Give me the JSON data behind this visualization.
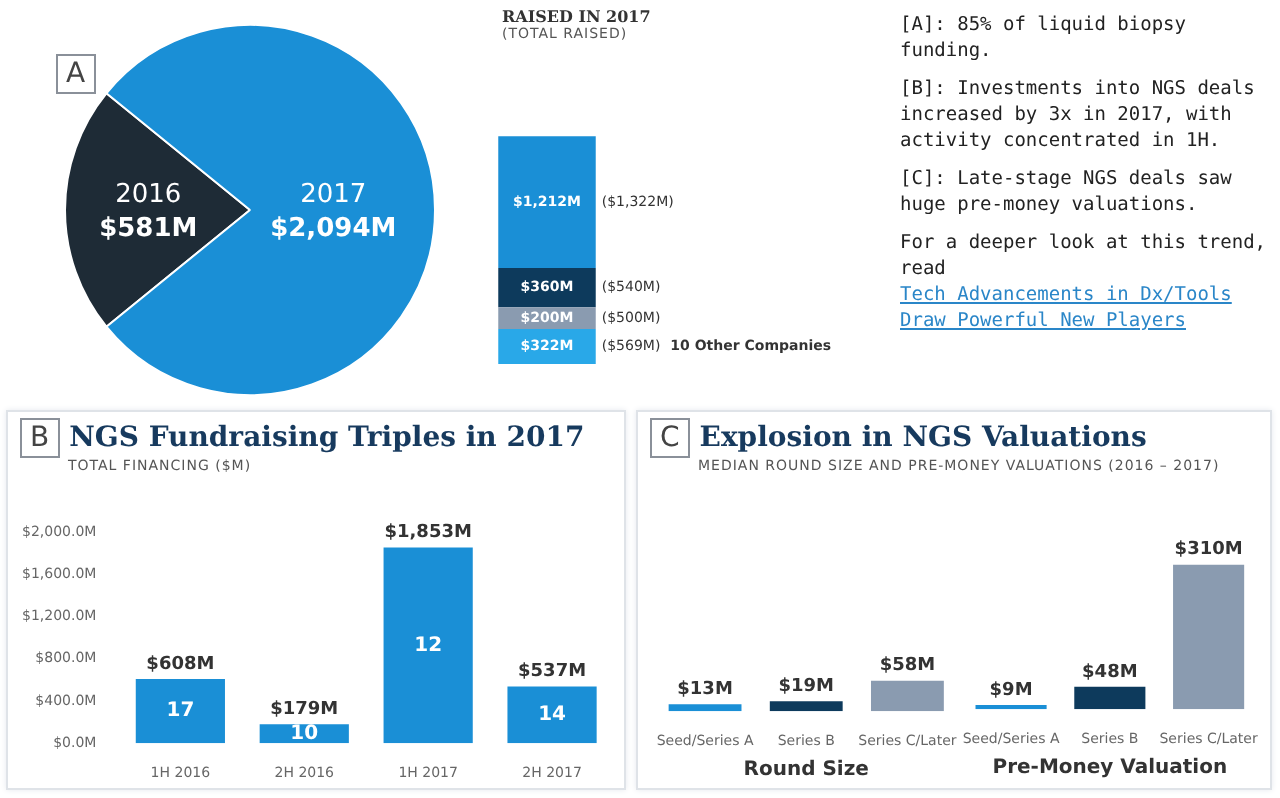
{
  "chart_data": [
    {
      "type": "pie",
      "annotations": [
        "A"
      ],
      "categories": [
        "2016",
        "2017"
      ],
      "values": [
        581,
        2094
      ],
      "colors": [
        "#1e2b36",
        "#1a8fd6"
      ],
      "value_labels": [
        "$581M",
        "$2,094M"
      ],
      "legend": false
    },
    {
      "type": "bar",
      "stacked": true,
      "title": "RAISED IN 2017",
      "subtitle": "(TOTAL RAISED)",
      "annotations": [
        "($569M)",
        "($500M)",
        "($540M)",
        "($1,322M)"
      ],
      "categories": [
        null
      ],
      "legend": false,
      "tick_labels": false,
      "series": [
        {
          "name": "10 Other Companies",
          "color": "#29a8e8",
          "values": [
            322
          ],
          "value_labels": [
            "$322M"
          ]
        },
        {
          "color": "#8a9bb0",
          "values": [
            200
          ],
          "value_labels": [
            "$200M"
          ]
        },
        {
          "color": "#0d3a5c",
          "values": [
            360
          ],
          "value_labels": [
            "$360M"
          ]
        },
        {
          "color": "#1a8fd6",
          "values": [
            1212
          ],
          "value_labels": [
            "$1,212M"
          ]
        }
      ]
    },
    {
      "type": "other",
      "annotations": [
        "[A]: 85% of liquid biopsy funding.",
        "[B]: Investments into NGS deals increased by 3x in 2017, with activity concentrated in 1H.",
        "[C]: Late-stage NGS deals saw huge pre-money valuations.",
        "For a deeper look at this trend, read",
        "Tech Advancements in Dx/Tools Draw Powerful New Players"
      ]
    },
    {
      "type": "bar",
      "title": "NGS Fundraising Triples in 2017",
      "subtitle": "TOTAL FINANCING ($M)",
      "annotations": [
        "B",
        "17",
        "10",
        "12",
        "14"
      ],
      "categories": [
        "1H 2016",
        "2H 2016",
        "1H 2017",
        "2H 2017"
      ],
      "values": [
        608,
        179,
        1853,
        537
      ],
      "value_labels": [
        "$608M",
        "$179M",
        "$1,853M",
        "$537M"
      ],
      "color": "#1a8fd6",
      "ylim": [
        0,
        2000
      ],
      "yticks": [
        {
          "value": 0,
          "label": "$0.0M"
        },
        {
          "value": 400,
          "label": "$400.0M"
        },
        {
          "value": 800,
          "label": "$800.0M"
        },
        {
          "value": 1200,
          "label": "$1,200.0M"
        },
        {
          "value": 1600,
          "label": "$1,600.0M"
        },
        {
          "value": 2000,
          "label": "$2,000.0M"
        }
      ],
      "grid": false,
      "legend": false
    },
    {
      "type": "bar",
      "title": "Explosion in NGS Valuations",
      "subtitle": "MEDIAN ROUND SIZE AND PRE-MONEY VALUATIONS (2016 – 2017)",
      "annotations": [
        "C"
      ],
      "xlabel": "Round Size",
      "categories": [
        "Seed/Series A",
        "Series B",
        "Series C/Later"
      ],
      "values": [
        13,
        19,
        58
      ],
      "value_labels": [
        "$13M",
        "$19M",
        "$58M"
      ],
      "colors": [
        "#1a8fd6",
        "#0d3a5c",
        "#8a9bb0"
      ],
      "tick_labels": "x",
      "grid": false,
      "legend": false
    },
    {
      "type": "bar",
      "xlabel": "Pre-Money Valuation",
      "categories": [
        "Seed/Series A",
        "Series B",
        "Series C/Later"
      ],
      "values": [
        9,
        48,
        310
      ],
      "value_labels": [
        "$9M",
        "$48M",
        "$310M"
      ],
      "colors": [
        "#1a8fd6",
        "#0d3a5c",
        "#8a9bb0"
      ],
      "tick_labels": "x",
      "grid": false,
      "legend": false
    }
  ]
}
